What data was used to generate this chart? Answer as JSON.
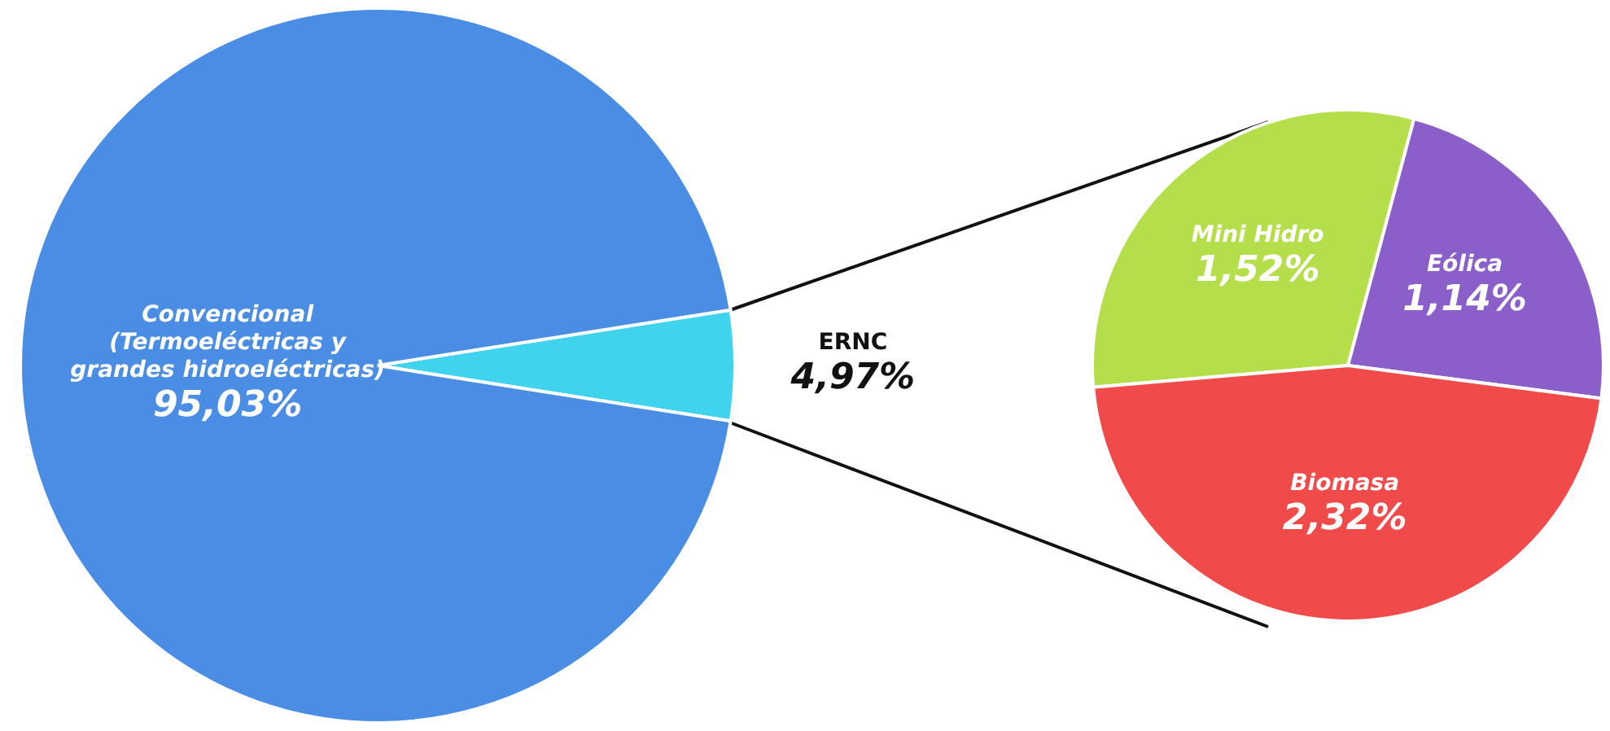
{
  "chart_data": [
    {
      "type": "pie",
      "categories": [
        "ERNC",
        "Convencional\n(Termoeléctricas y\ngrandes hidroeléctricas)"
      ],
      "values": [
        4.97,
        95.03
      ],
      "colors": [
        "#3fd3ee",
        "#4a8de4"
      ],
      "value_labels": [
        "4,97%",
        "95,03%"
      ]
    },
    {
      "type": "pie",
      "categories": [
        "Mini Hidro",
        "Eólica",
        "Biomasa"
      ],
      "values": [
        1.52,
        1.14,
        2.32
      ],
      "colors": [
        "#b5df4a",
        "#8b5fc9",
        "#f04a4a"
      ],
      "value_labels": [
        "1,52%",
        "1,14%",
        "2,32%"
      ]
    }
  ]
}
